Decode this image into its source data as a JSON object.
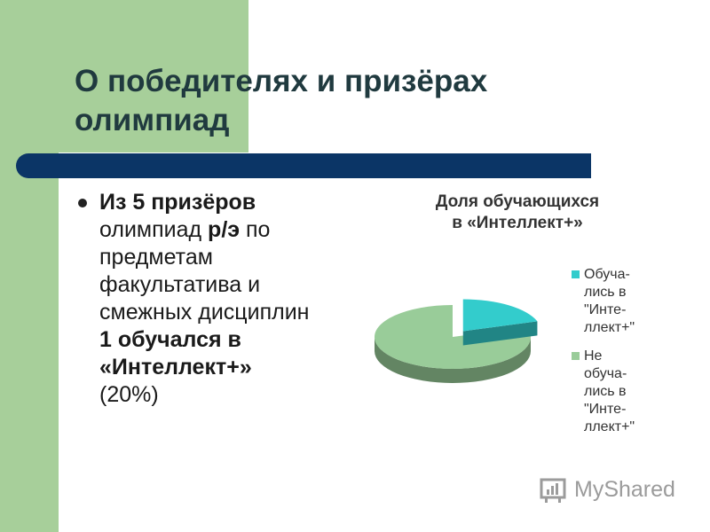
{
  "slide": {
    "title_lines": [
      "О победителях и призёрах",
      "олимпиад"
    ],
    "bullet": {
      "lines": [
        {
          "bold": "Из 5 призёров",
          "normal": ""
        },
        {
          "normal": "олимпиад ",
          "bold": "р/э",
          "normal2": " по"
        },
        {
          "normal": "предметам"
        },
        {
          "normal": "факультатива и"
        },
        {
          "normal": "смежных дисциплин"
        },
        {
          "bold": "1 обучался в"
        },
        {
          "bold": "«Интеллект+»"
        },
        {
          "normal": "(20%)"
        }
      ]
    }
  },
  "chart_data": {
    "type": "pie",
    "title_lines": [
      "Доля обучающихся",
      "в «Интеллект+»"
    ],
    "categories": [
      "Обучались в \"Интеллект+\"",
      "Не обучались в \"Интеллект+\""
    ],
    "values": [
      1,
      4
    ],
    "colors": [
      "#33cccc",
      "#99cc99"
    ],
    "legend_placement": "right",
    "legend": [
      {
        "lines": [
          "Обуча-",
          "лись в",
          "\"Инте-",
          "ллект+\""
        ],
        "color": "#33cccc"
      },
      {
        "lines": [
          "Не",
          "обуча-",
          "лись в",
          "\"Инте-",
          "ллект+\""
        ],
        "color": "#99cc99"
      }
    ]
  },
  "watermark": {
    "text": "MyShared",
    "icon": "chart-icon"
  }
}
